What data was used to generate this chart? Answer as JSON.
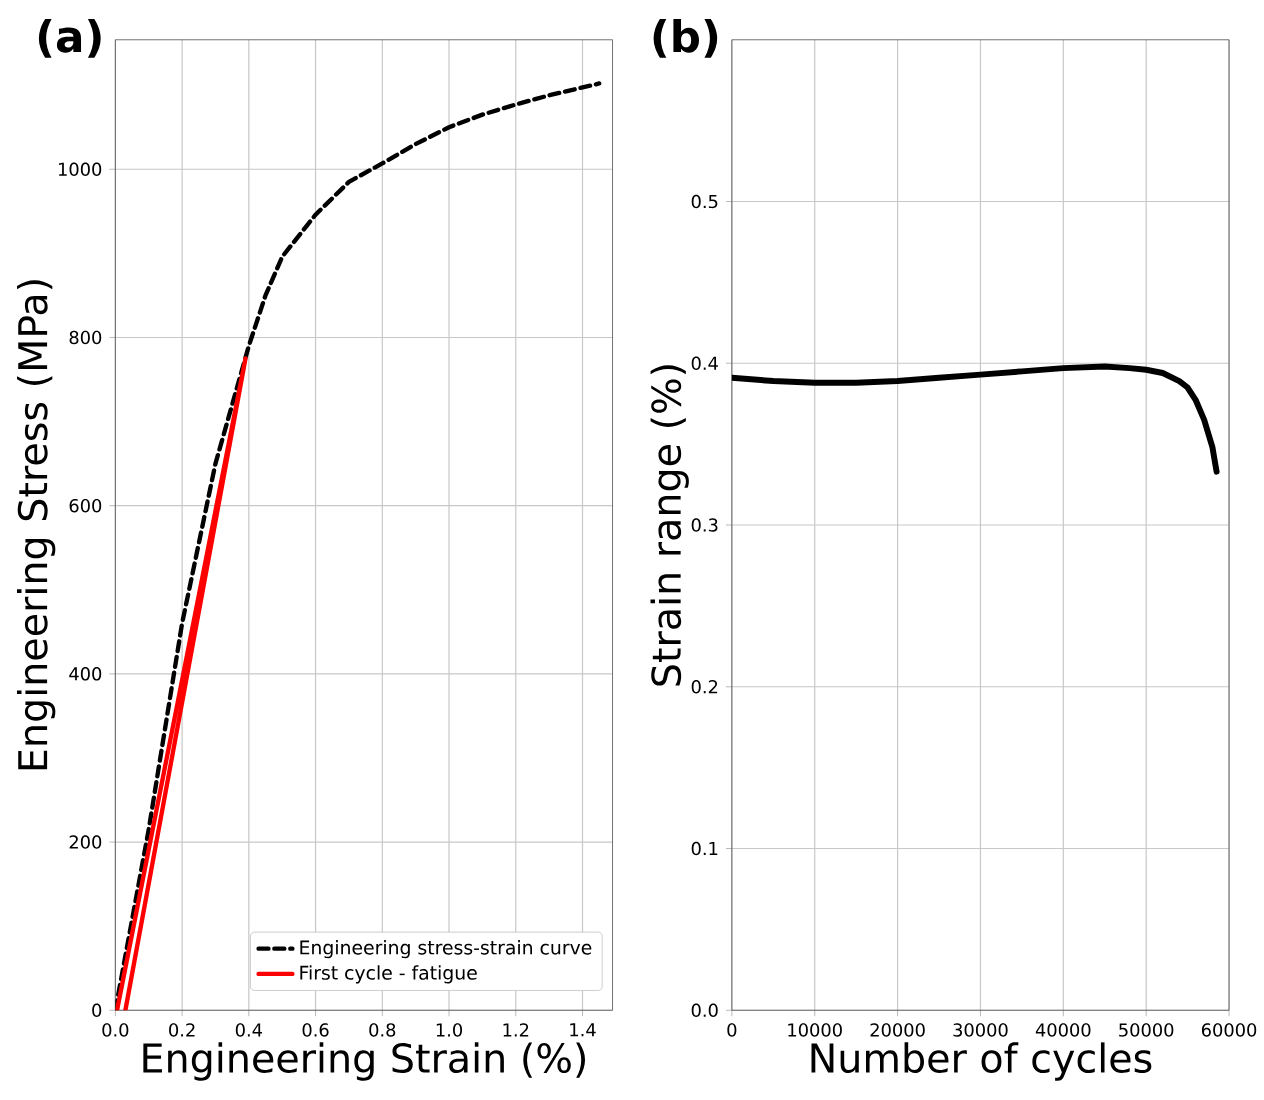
{
  "chart_data": [
    {
      "type": "line",
      "title": "(a)",
      "xlabel": "Engineering Strain (%)",
      "ylabel": "Engineering Stress (MPa)",
      "xlim": [
        0,
        1.49
      ],
      "ylim": [
        0,
        1154
      ],
      "xticks": [
        {
          "value": 0,
          "label": "0.0"
        },
        0.2,
        0.4,
        0.6,
        0.8,
        {
          "value": 1,
          "label": "1.0"
        },
        1.2,
        1.4
      ],
      "yticks": [
        0,
        200,
        400,
        600,
        800,
        1000
      ],
      "grid": true,
      "legend": "bottom right",
      "series": [
        {
          "name": "Engineering stress-strain curve",
          "color": "#000000",
          "line_style": "dashed",
          "x": [
            0,
            0.1,
            0.2,
            0.3,
            0.4,
            0.45,
            0.5,
            0.6,
            0.7,
            0.8,
            0.9,
            1.0,
            1.1,
            1.2,
            1.3,
            1.45
          ],
          "values": [
            0,
            215,
            460,
            650,
            790,
            850,
            896,
            946,
            985,
            1007,
            1030,
            1050,
            1065,
            1077,
            1088,
            1102
          ]
        },
        {
          "name": "First cycle - fatigue",
          "color": "#ff0000",
          "line_style": "solid",
          "x": [
            0.005,
            0.39,
            0.03
          ],
          "values": [
            0,
            775,
            0
          ]
        }
      ]
    },
    {
      "type": "line",
      "title": "(b)",
      "xlabel": "Number of cycles",
      "ylabel": "Strain range (%)",
      "xlim": [
        0,
        60000
      ],
      "ylim": [
        0,
        0.6
      ],
      "xticks": [
        0,
        10000,
        20000,
        30000,
        40000,
        50000,
        60000
      ],
      "yticks": [
        {
          "value": 0,
          "label": "0.0"
        },
        0.1,
        0.2,
        0.3,
        0.4,
        0.5
      ],
      "grid": true,
      "series": [
        {
          "color": "#000000",
          "line_style": "solid",
          "x": [
            0,
            5000,
            10000,
            15000,
            20000,
            25000,
            30000,
            35000,
            40000,
            45000,
            48000,
            50000,
            52000,
            54000,
            55000,
            56000,
            57000,
            58000,
            58500
          ],
          "values": [
            0.391,
            0.389,
            0.388,
            0.388,
            0.389,
            0.391,
            0.393,
            0.395,
            0.397,
            0.398,
            0.397,
            0.396,
            0.394,
            0.389,
            0.385,
            0.377,
            0.365,
            0.348,
            0.333
          ]
        }
      ]
    }
  ]
}
